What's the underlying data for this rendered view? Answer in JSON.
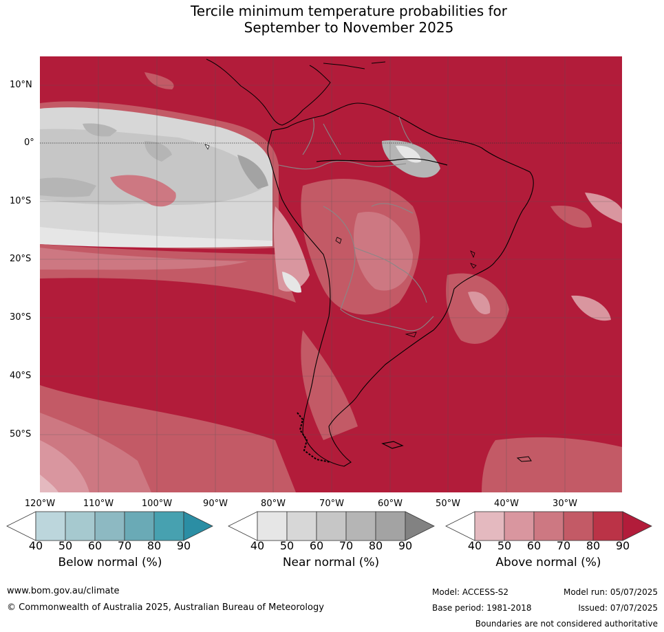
{
  "title_line1": "Tercile minimum temperature probabilities for",
  "title_line2": "September to November 2025",
  "latitudes": [
    "10°N",
    "0°",
    "10°S",
    "20°S",
    "30°S",
    "40°S",
    "50°S"
  ],
  "longitudes": [
    "120°W",
    "110°W",
    "100°W",
    "90°W",
    "80°W",
    "70°W",
    "60°W",
    "50°W",
    "40°W",
    "30°W"
  ],
  "colorbars": [
    {
      "label": "Below normal (%)",
      "ticks": [
        "40",
        "50",
        "60",
        "70",
        "80",
        "90"
      ],
      "colors": [
        "#ffffff",
        "#bcd6dc",
        "#a6c9cf",
        "#8db9c2",
        "#6aaab6",
        "#47a1b0",
        "#2b8ea4"
      ]
    },
    {
      "label": "Near normal (%)",
      "ticks": [
        "40",
        "50",
        "60",
        "70",
        "80",
        "90"
      ],
      "colors": [
        "#ffffff",
        "#e6e6e6",
        "#d7d7d7",
        "#c6c6c6",
        "#b5b5b5",
        "#a3a3a3",
        "#828282"
      ]
    },
    {
      "label": "Above normal (%)",
      "ticks": [
        "40",
        "50",
        "60",
        "70",
        "80",
        "90"
      ],
      "colors": [
        "#ffffff",
        "#e4b9bf",
        "#d9969f",
        "#cd7882",
        "#c35a66",
        "#bb3347",
        "#b21c3a"
      ]
    }
  ],
  "footer": {
    "website": "www.bom.gov.au/climate",
    "copyright": "© Commonwealth of Australia 2025, Australian Bureau of Meteorology",
    "model": "Model: ACCESS-S2",
    "base_period": "Base period: 1981-2018",
    "model_run": "Model run: 05/07/2025",
    "issued": "Issued: 07/07/2025",
    "disclaimer": "Boundaries are not considered authoritative"
  }
}
